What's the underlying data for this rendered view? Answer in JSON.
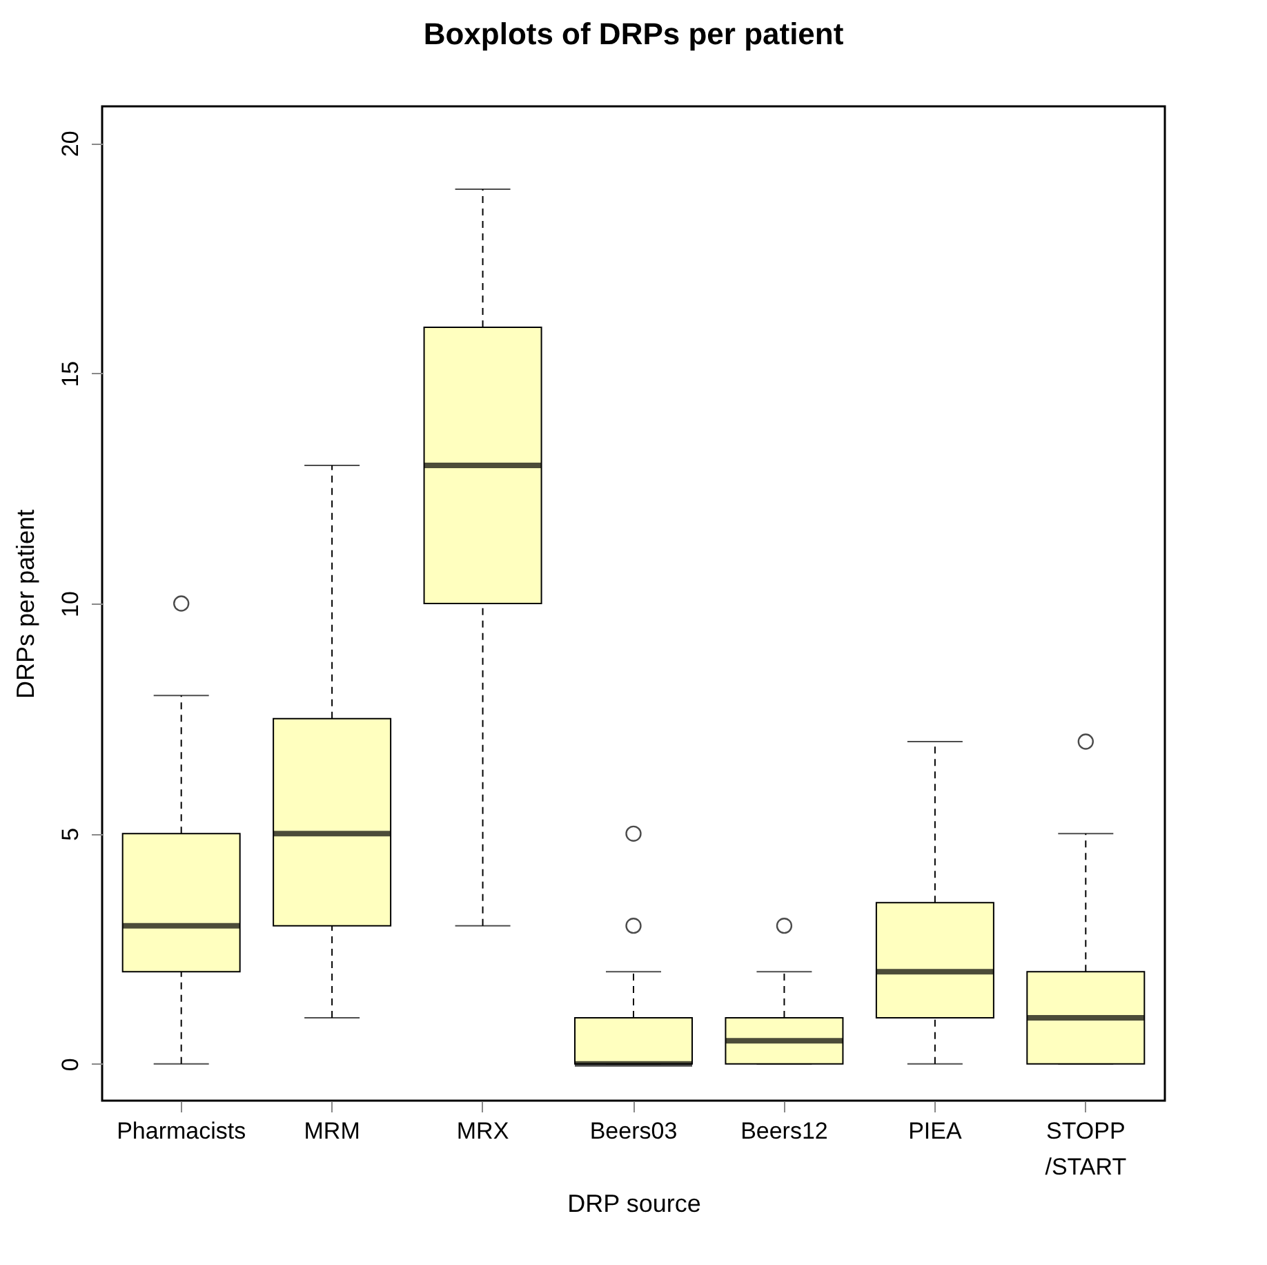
{
  "chart_data": {
    "type": "box",
    "title": "Boxplots of DRPs per patient",
    "xlabel": "DRP source",
    "ylabel": "DRPs per patient",
    "categories": [
      "Pharmacists",
      "MRM",
      "MRX",
      "Beers03",
      "Beers12",
      "PIEA",
      "STOPP\n/START"
    ],
    "ylim": [
      -0.8,
      20.8
    ],
    "yticks": [
      0,
      5,
      10,
      15,
      20
    ],
    "grid": false,
    "line_style": "dashed",
    "series": [
      {
        "color": "#ffffbf",
        "boxes": [
          {
            "low": 0,
            "q1": 2,
            "median": 3,
            "q3": 5,
            "high": 8,
            "outliers": [
              10
            ]
          },
          {
            "low": 1,
            "q1": 3,
            "median": 5,
            "q3": 7.5,
            "high": 13
          },
          {
            "low": 3,
            "q1": 10,
            "median": 13,
            "q3": 16,
            "high": 19
          },
          {
            "low": 0,
            "q1": 0,
            "median": 0,
            "q3": 1,
            "high": 2,
            "outliers": [
              3,
              5
            ]
          },
          {
            "low": 0,
            "q1": 0,
            "median": 0.5,
            "q3": 1,
            "high": 2,
            "outliers": [
              3
            ]
          },
          {
            "low": 0,
            "q1": 1,
            "median": 2,
            "q3": 3.5,
            "high": 7
          },
          {
            "low": 0,
            "q1": 0,
            "median": 1,
            "q3": 2,
            "high": 5,
            "outliers": [
              7
            ]
          }
        ]
      }
    ]
  }
}
